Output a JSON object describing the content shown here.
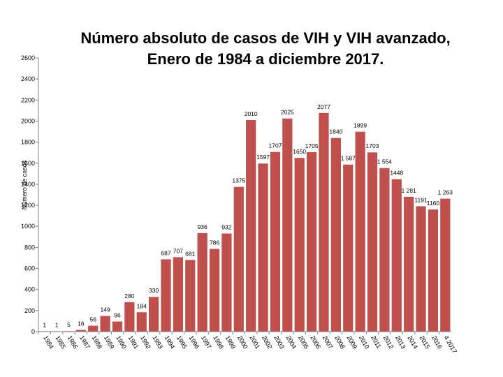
{
  "chart_data": {
    "type": "bar",
    "title_line1": "Número absoluto de casos de VIH y VIH avanzado,",
    "title_line2": "Enero de 1984 a diciembre 2017.",
    "ylabel": "Número de casos",
    "xlabel": "",
    "ylim": [
      0,
      2600
    ],
    "yticks": [
      "0",
      "200",
      "400",
      "600",
      "800",
      "1000",
      "1200",
      "1400",
      "1600",
      "1800",
      "2000",
      "2200",
      "2400",
      "2600"
    ],
    "ytick_values": [
      0,
      200,
      400,
      600,
      800,
      1000,
      1200,
      1400,
      1600,
      1800,
      2000,
      2200,
      2400,
      2600
    ],
    "grid": false,
    "bar_color": "#c0504d",
    "categories": [
      "1984",
      "1985",
      "1986",
      "1987",
      "1988",
      "1989",
      "1990",
      "1991",
      "1992",
      "1993",
      "1994",
      "1995",
      "1996",
      "1997",
      "1998",
      "1999",
      "2000",
      "2001",
      "2002",
      "2003",
      "2004",
      "2005",
      "2006",
      "2007",
      "2008",
      "2009",
      "2010",
      "2011",
      "2012",
      "2013",
      "2014",
      "2015",
      "2016",
      "4 2017"
    ],
    "values": [
      1,
      1,
      5,
      16,
      56,
      149,
      96,
      280,
      184,
      330,
      687,
      707,
      681,
      936,
      786,
      932,
      1375,
      2010,
      1597,
      1707,
      2025,
      1650,
      1705,
      2077,
      1840,
      1587,
      1899,
      1703,
      1554,
      1448,
      1281,
      1191,
      1160,
      1263
    ],
    "data_labels": [
      "1",
      "1",
      "5",
      "16",
      "56",
      "149",
      "96",
      "280",
      "184",
      "330",
      "687",
      "707",
      "681",
      "936",
      "786",
      "932",
      "1375",
      "2010",
      "1597",
      "1707",
      "2025",
      "1650",
      "1705",
      "2077",
      "1840",
      "1 587",
      "1899",
      "1703",
      "1 554",
      "1448",
      "1 281",
      "1191",
      "1160",
      "1 263"
    ]
  }
}
